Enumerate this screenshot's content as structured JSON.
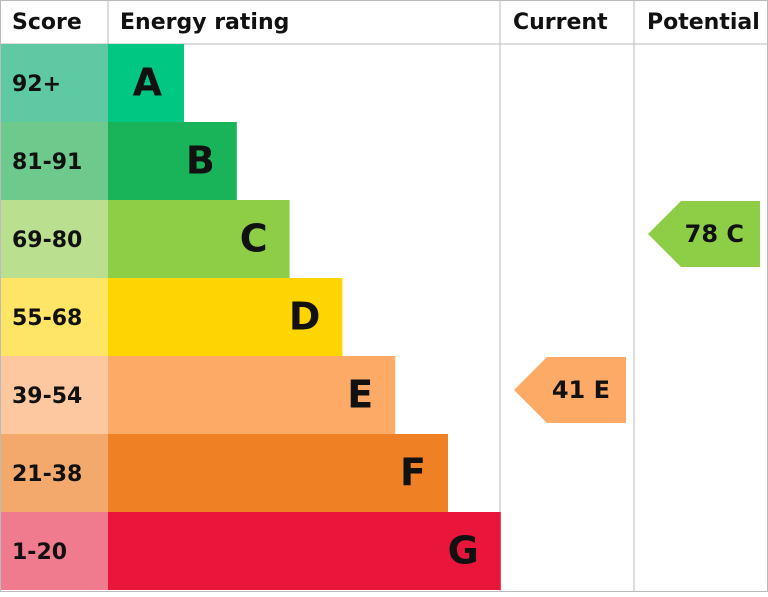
{
  "header": {
    "score": "Score",
    "rating": "Energy rating",
    "current": "Current",
    "potential": "Potential"
  },
  "rows": [
    {
      "score": "92+",
      "letter": "A",
      "color": "#00c781",
      "tint": "#5fc9a4"
    },
    {
      "score": "81-91",
      "letter": "B",
      "color": "#19b459",
      "tint": "#6dca8c"
    },
    {
      "score": "69-80",
      "letter": "C",
      "color": "#8dce46",
      "tint": "#badf8e"
    },
    {
      "score": "55-68",
      "letter": "D",
      "color": "#ffd500",
      "tint": "#ffe566"
    },
    {
      "score": "39-54",
      "letter": "E",
      "color": "#fcaa65",
      "tint": "#fdc89f"
    },
    {
      "score": "21-38",
      "letter": "F",
      "color": "#ef8023",
      "tint": "#f4a96c"
    },
    {
      "score": "1-20",
      "letter": "G",
      "color": "#e9153b",
      "tint": "#f07a8e"
    }
  ],
  "current": {
    "label": "41 E",
    "row": 4
  },
  "potential": {
    "label": "78 C",
    "row": 2
  }
}
